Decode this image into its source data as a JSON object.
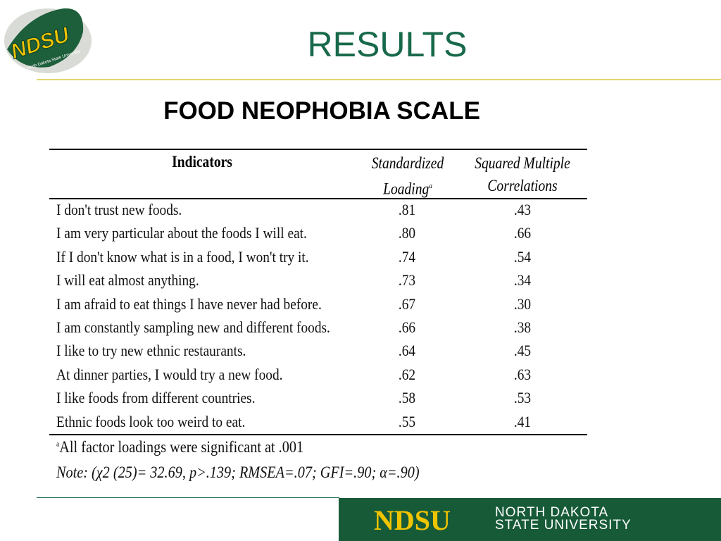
{
  "logo": {
    "mark": "NDSU",
    "caption": "North Dakota State University"
  },
  "title": "RESULTS",
  "subtitle": "FOOD NEOPHOBIA SCALE",
  "table": {
    "headers": {
      "indicators": "Indicators",
      "loading": [
        "Standardized",
        "Loading"
      ],
      "loading_sup": "a",
      "smc": [
        "Squared Multiple",
        "Correlations"
      ]
    },
    "rows": [
      [
        "I don't trust new foods.",
        ".81",
        ".43"
      ],
      [
        "I am very particular about the foods I will eat.",
        ".80",
        ".66"
      ],
      [
        "If I don't know what is in a food, I won't try it.",
        ".74",
        ".54"
      ],
      [
        "I will eat almost anything.",
        ".73",
        ".34"
      ],
      [
        "I am afraid to eat things I have never had before.",
        ".67",
        ".30"
      ],
      [
        "I am constantly sampling new and different foods.",
        ".66",
        ".38"
      ],
      [
        "I like to try new ethnic restaurants.",
        ".64",
        ".45"
      ],
      [
        "At dinner parties, I would try a new food.",
        ".62",
        ".63"
      ],
      [
        "I like foods from different countries.",
        ".58",
        ".53"
      ],
      [
        "Ethnic foods look too weird to eat.",
        ".55",
        ".41"
      ]
    ],
    "footnote_sup": "a",
    "footnote": "All factor loadings were significant at .001",
    "note": "Note: (χ2 (25)= 32.69, p>.139; RMSEA=.07; GFI=.90; α=.90)"
  },
  "footer": {
    "mark": "NDSU",
    "name": [
      "NORTH DAKOTA",
      "STATE UNIVERSITY"
    ]
  }
}
